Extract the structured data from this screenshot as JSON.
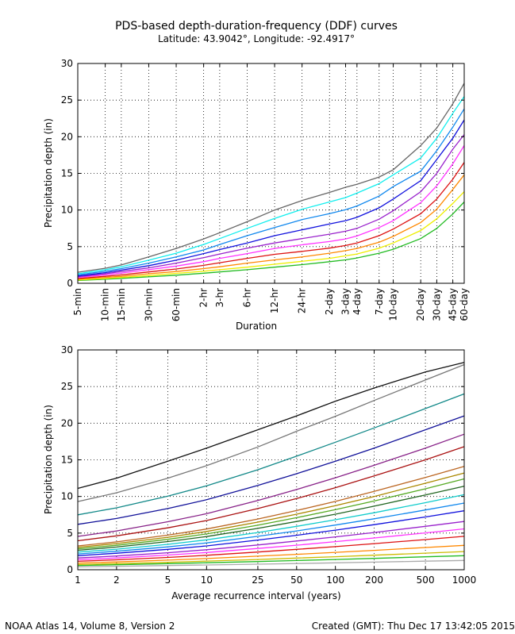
{
  "title": "PDS-based depth-duration-frequency (DDF) curves",
  "subtitle": "Latitude: 43.9042°, Longitude: -92.4917°",
  "footer": {
    "left": "NOAA Atlas 14, Volume 8, Version 2",
    "right": "Created (GMT): Thu Dec 17 13:42:05 2015"
  },
  "chart_data": [
    {
      "type": "line",
      "xlabel": "Duration",
      "ylabel": "Precipitation depth (in)",
      "ylim": [
        0,
        30
      ],
      "yticks": [
        0,
        5,
        10,
        15,
        20,
        25,
        30
      ],
      "grid": true,
      "categories": [
        "5-min",
        "10-min",
        "15-min",
        "30-min",
        "60-min",
        "2-hr",
        "3-hr",
        "6-hr",
        "12-hr",
        "24-hr",
        "2-day",
        "3-day",
        "4-day",
        "7-day",
        "10-day",
        "20-day",
        "30-day",
        "45-day",
        "60-day"
      ],
      "x_hours": [
        0.0833,
        0.1667,
        0.25,
        0.5,
        1,
        2,
        3,
        6,
        12,
        24,
        48,
        72,
        96,
        168,
        240,
        480,
        720,
        1080,
        1440
      ],
      "series": [
        {
          "color": "#22bb22",
          "values": [
            0.38,
            0.55,
            0.67,
            0.88,
            1.1,
            1.38,
            1.55,
            1.85,
            2.2,
            2.55,
            2.95,
            3.2,
            3.45,
            4.1,
            4.65,
            6.1,
            7.5,
            9.45,
            11.1
          ]
        },
        {
          "color": "#eeee00",
          "values": [
            0.45,
            0.65,
            0.8,
            1.05,
            1.35,
            1.65,
            1.85,
            2.2,
            2.6,
            3.0,
            3.4,
            3.75,
            4.0,
            4.8,
            5.5,
            7.2,
            8.8,
            10.9,
            12.5
          ]
        },
        {
          "color": "#ff8800",
          "values": [
            0.55,
            0.8,
            0.95,
            1.3,
            1.6,
            2.0,
            2.25,
            2.75,
            3.2,
            3.6,
            4.1,
            4.45,
            4.75,
            5.6,
            6.4,
            8.3,
            10.1,
            12.8,
            14.8
          ]
        },
        {
          "color": "#dd1111",
          "values": [
            0.65,
            0.95,
            1.15,
            1.55,
            1.95,
            2.45,
            2.8,
            3.4,
            3.95,
            4.35,
            4.8,
            5.15,
            5.5,
            6.5,
            7.4,
            9.5,
            11.5,
            14.2,
            16.5
          ]
        },
        {
          "color": "#ff33ff",
          "values": [
            0.8,
            1.15,
            1.4,
            1.85,
            2.35,
            2.95,
            3.4,
            4.05,
            4.75,
            5.25,
            5.7,
            6.05,
            6.45,
            7.6,
            8.55,
            11.0,
            13.3,
            16.3,
            18.8
          ]
        },
        {
          "color": "#9922cc",
          "values": [
            0.9,
            1.3,
            1.6,
            2.1,
            2.75,
            3.5,
            4.0,
            4.8,
            5.5,
            6.1,
            6.7,
            7.1,
            7.5,
            8.75,
            9.9,
            12.5,
            15.0,
            18.3,
            20.3
          ]
        },
        {
          "color": "#1111dd",
          "values": [
            1.0,
            1.45,
            1.8,
            2.4,
            3.15,
            4.05,
            4.6,
            5.5,
            6.5,
            7.3,
            8.1,
            8.55,
            9.0,
            10.3,
            11.5,
            14.0,
            16.9,
            19.8,
            22.3
          ]
        },
        {
          "color": "#1188ee",
          "values": [
            1.15,
            1.65,
            2.0,
            2.75,
            3.6,
            4.55,
            5.3,
            6.5,
            7.6,
            8.7,
            9.5,
            10.05,
            10.55,
            11.9,
            13.2,
            15.3,
            18.1,
            21.3,
            23.8
          ]
        },
        {
          "color": "#11eeee",
          "values": [
            1.3,
            1.85,
            2.25,
            3.15,
            4.1,
            5.3,
            6.1,
            7.5,
            8.85,
            10.1,
            11.1,
            11.7,
            12.3,
            13.6,
            14.8,
            17.1,
            19.8,
            23.2,
            25.5
          ]
        },
        {
          "color": "#666666",
          "values": [
            1.5,
            2.05,
            2.5,
            3.6,
            4.75,
            6.05,
            6.9,
            8.4,
            10.0,
            11.3,
            12.4,
            13.1,
            13.5,
            14.5,
            15.5,
            18.8,
            21.2,
            24.5,
            27.3
          ]
        }
      ]
    },
    {
      "type": "line",
      "xlabel": "Average recurrence interval (years)",
      "ylabel": "Precipitation depth (in)",
      "xscale": "log",
      "xticks": [
        1,
        2,
        5,
        10,
        25,
        50,
        100,
        200,
        500,
        1000
      ],
      "ylim": [
        0,
        30
      ],
      "yticks": [
        0,
        5,
        10,
        15,
        20,
        25,
        30
      ],
      "grid": true,
      "x": [
        1,
        2,
        5,
        10,
        25,
        50,
        100,
        200,
        500,
        1000
      ],
      "series": [
        {
          "color": "#aaaaaa",
          "values": [
            0.4,
            0.47,
            0.57,
            0.65,
            0.76,
            0.85,
            0.94,
            1.04,
            1.17,
            1.27
          ]
        },
        {
          "color": "#22bb22",
          "values": [
            0.58,
            0.68,
            0.83,
            0.95,
            1.12,
            1.26,
            1.4,
            1.55,
            1.76,
            1.92
          ]
        },
        {
          "color": "#ccbb00",
          "values": [
            0.7,
            0.83,
            1.02,
            1.18,
            1.4,
            1.59,
            1.78,
            1.98,
            2.26,
            2.48
          ]
        },
        {
          "color": "#ff8800",
          "values": [
            0.9,
            1.06,
            1.31,
            1.53,
            1.85,
            2.1,
            2.37,
            2.64,
            3.03,
            3.33
          ]
        },
        {
          "color": "#dd1111",
          "values": [
            1.15,
            1.35,
            1.68,
            1.97,
            2.42,
            2.78,
            3.15,
            3.56,
            4.12,
            4.56
          ]
        },
        {
          "color": "#ff33ff",
          "values": [
            1.37,
            1.6,
            2.0,
            2.35,
            2.9,
            3.35,
            3.83,
            4.33,
            5.03,
            5.58
          ]
        },
        {
          "color": "#9922cc",
          "values": [
            1.6,
            1.87,
            2.32,
            2.73,
            3.38,
            3.92,
            4.48,
            5.08,
            5.92,
            6.58
          ]
        },
        {
          "color": "#1111dd",
          "values": [
            1.92,
            2.25,
            2.78,
            3.25,
            4.05,
            4.7,
            5.4,
            6.15,
            7.2,
            8.05
          ]
        },
        {
          "color": "#1188ee",
          "values": [
            2.15,
            2.52,
            3.12,
            3.66,
            4.56,
            5.3,
            6.1,
            6.95,
            8.15,
            9.1
          ]
        },
        {
          "color": "#11cccc",
          "values": [
            2.4,
            2.8,
            3.47,
            4.08,
            5.08,
            5.92,
            6.82,
            7.78,
            9.15,
            10.25
          ]
        },
        {
          "color": "#226622",
          "values": [
            2.65,
            3.1,
            3.85,
            4.53,
            5.64,
            6.58,
            7.58,
            8.67,
            10.2,
            11.4
          ]
        },
        {
          "color": "#55aa22",
          "values": [
            2.85,
            3.34,
            4.15,
            4.88,
            6.08,
            7.1,
            8.2,
            9.38,
            11.05,
            12.4
          ]
        },
        {
          "color": "#aa8800",
          "values": [
            3.05,
            3.57,
            4.43,
            5.22,
            6.5,
            7.58,
            8.75,
            10.0,
            11.8,
            13.2
          ]
        },
        {
          "color": "#bb6622",
          "values": [
            3.25,
            3.8,
            4.72,
            5.56,
            6.92,
            8.08,
            9.33,
            10.7,
            12.6,
            14.1
          ]
        },
        {
          "color": "#aa1111",
          "values": [
            3.95,
            4.62,
            5.72,
            6.72,
            8.35,
            9.72,
            11.2,
            12.8,
            15.0,
            16.8
          ]
        },
        {
          "color": "#882288",
          "values": [
            4.55,
            5.3,
            6.55,
            7.65,
            9.45,
            10.95,
            12.55,
            14.25,
            16.6,
            18.5
          ]
        },
        {
          "color": "#111199",
          "values": [
            6.2,
            7.0,
            8.35,
            9.55,
            11.5,
            13.1,
            14.8,
            16.6,
            19.1,
            21.0
          ]
        },
        {
          "color": "#118888",
          "values": [
            7.5,
            8.45,
            10.05,
            11.45,
            13.65,
            15.5,
            17.4,
            19.35,
            22.0,
            24.0
          ]
        },
        {
          "color": "#777777",
          "values": [
            9.3,
            10.5,
            12.5,
            14.2,
            16.75,
            18.9,
            20.95,
            23.1,
            25.9,
            28.0
          ]
        },
        {
          "color": "#111111",
          "values": [
            11.1,
            12.5,
            14.8,
            16.6,
            19.1,
            21.0,
            23.0,
            24.8,
            27.0,
            28.3
          ]
        }
      ]
    }
  ]
}
